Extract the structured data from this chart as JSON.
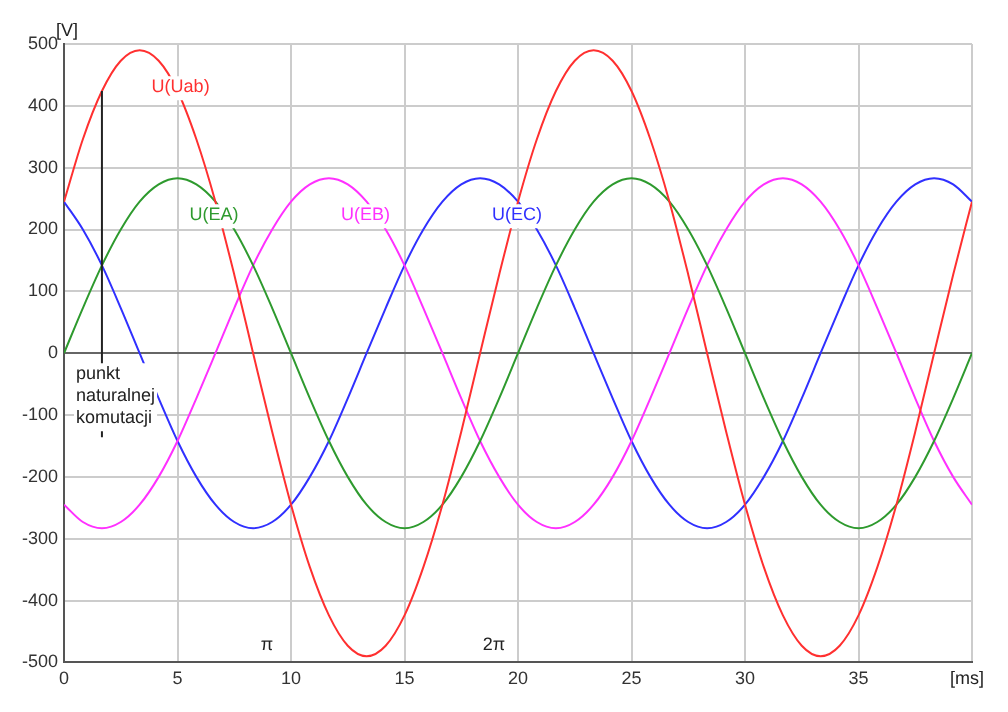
{
  "chart_data": {
    "type": "line",
    "xlabel": "[ms]",
    "ylabel": "[V]",
    "x": [
      0,
      0.83,
      1.67,
      2.5,
      3.33,
      4.17,
      5,
      5.83,
      6.67,
      7.5,
      8.33,
      9.17,
      10,
      10.83,
      11.67,
      12.5,
      13.33,
      14.17,
      15,
      15.83,
      16.67,
      17.5,
      18.33,
      19.17,
      20,
      20.83,
      21.67,
      22.5,
      23.33,
      24.17,
      25,
      25.83,
      26.67,
      27.5,
      28.33,
      29.17,
      30,
      30.83,
      31.67,
      32.5,
      33.33,
      34.17,
      35,
      35.83,
      36.67,
      37.5,
      38.33,
      39.17,
      40
    ],
    "series": [
      {
        "name": "U(Uab)",
        "color": "#ff3030",
        "values": [
          245,
          346,
          424,
          473,
          490,
          473,
          424,
          346,
          245,
          127,
          0,
          -127,
          -245,
          -346,
          -424,
          -473,
          -490,
          -473,
          -424,
          -346,
          -245,
          -127,
          0,
          127,
          245,
          346,
          424,
          473,
          490,
          473,
          424,
          346,
          245,
          127,
          0,
          -127,
          -245,
          -346,
          -424,
          -473,
          -490,
          -473,
          -424,
          -346,
          -245,
          -127,
          0,
          127,
          245
        ]
      },
      {
        "name": "U(EA)",
        "color": "#2e9a2e",
        "values": [
          0,
          73,
          142,
          200,
          245,
          273,
          283,
          273,
          245,
          200,
          142,
          73,
          0,
          -73,
          -142,
          -200,
          -245,
          -273,
          -283,
          -273,
          -245,
          -200,
          -142,
          -73,
          0,
          73,
          142,
          200,
          245,
          273,
          283,
          273,
          245,
          200,
          142,
          73,
          0,
          -73,
          -142,
          -200,
          -245,
          -273,
          -283,
          -273,
          -245,
          -200,
          -142,
          -73,
          0
        ]
      },
      {
        "name": "U(EB)",
        "color": "#ff30ff",
        "values": [
          -245,
          -273,
          -283,
          -273,
          -245,
          -200,
          -142,
          -73,
          0,
          73,
          142,
          200,
          245,
          273,
          283,
          273,
          245,
          200,
          142,
          73,
          0,
          -73,
          -142,
          -200,
          -245,
          -273,
          -283,
          -273,
          -245,
          -200,
          -142,
          -73,
          0,
          73,
          142,
          200,
          245,
          273,
          283,
          273,
          245,
          200,
          142,
          73,
          0,
          -73,
          -142,
          -200,
          -245
        ]
      },
      {
        "name": "U(EC)",
        "color": "#3030ff",
        "values": [
          245,
          200,
          142,
          73,
          0,
          -73,
          -142,
          -200,
          -245,
          -273,
          -283,
          -273,
          -245,
          -200,
          -142,
          -73,
          0,
          73,
          142,
          200,
          245,
          273,
          283,
          273,
          245,
          200,
          142,
          73,
          0,
          -73,
          -142,
          -200,
          -245,
          -273,
          -283,
          -273,
          -245,
          -200,
          -142,
          -73,
          0,
          73,
          142,
          200,
          245,
          273,
          283,
          273,
          245
        ]
      }
    ],
    "xlim": [
      0,
      40
    ],
    "xticks": [
      0,
      5,
      10,
      15,
      20,
      25,
      30,
      35,
      {
        "value": 40,
        "label": null
      }
    ],
    "ylim": [
      -500,
      500
    ],
    "yticks": [
      -500,
      -400,
      -300,
      -200,
      -100,
      0,
      100,
      200,
      300,
      400,
      500
    ],
    "grid": true,
    "legend": false,
    "marker": "none",
    "line_style": "solid",
    "annotations": [
      {
        "text": "punkt naturalnej komutacji",
        "x": 1.67,
        "y": 424
      },
      "π",
      "2π"
    ]
  }
}
